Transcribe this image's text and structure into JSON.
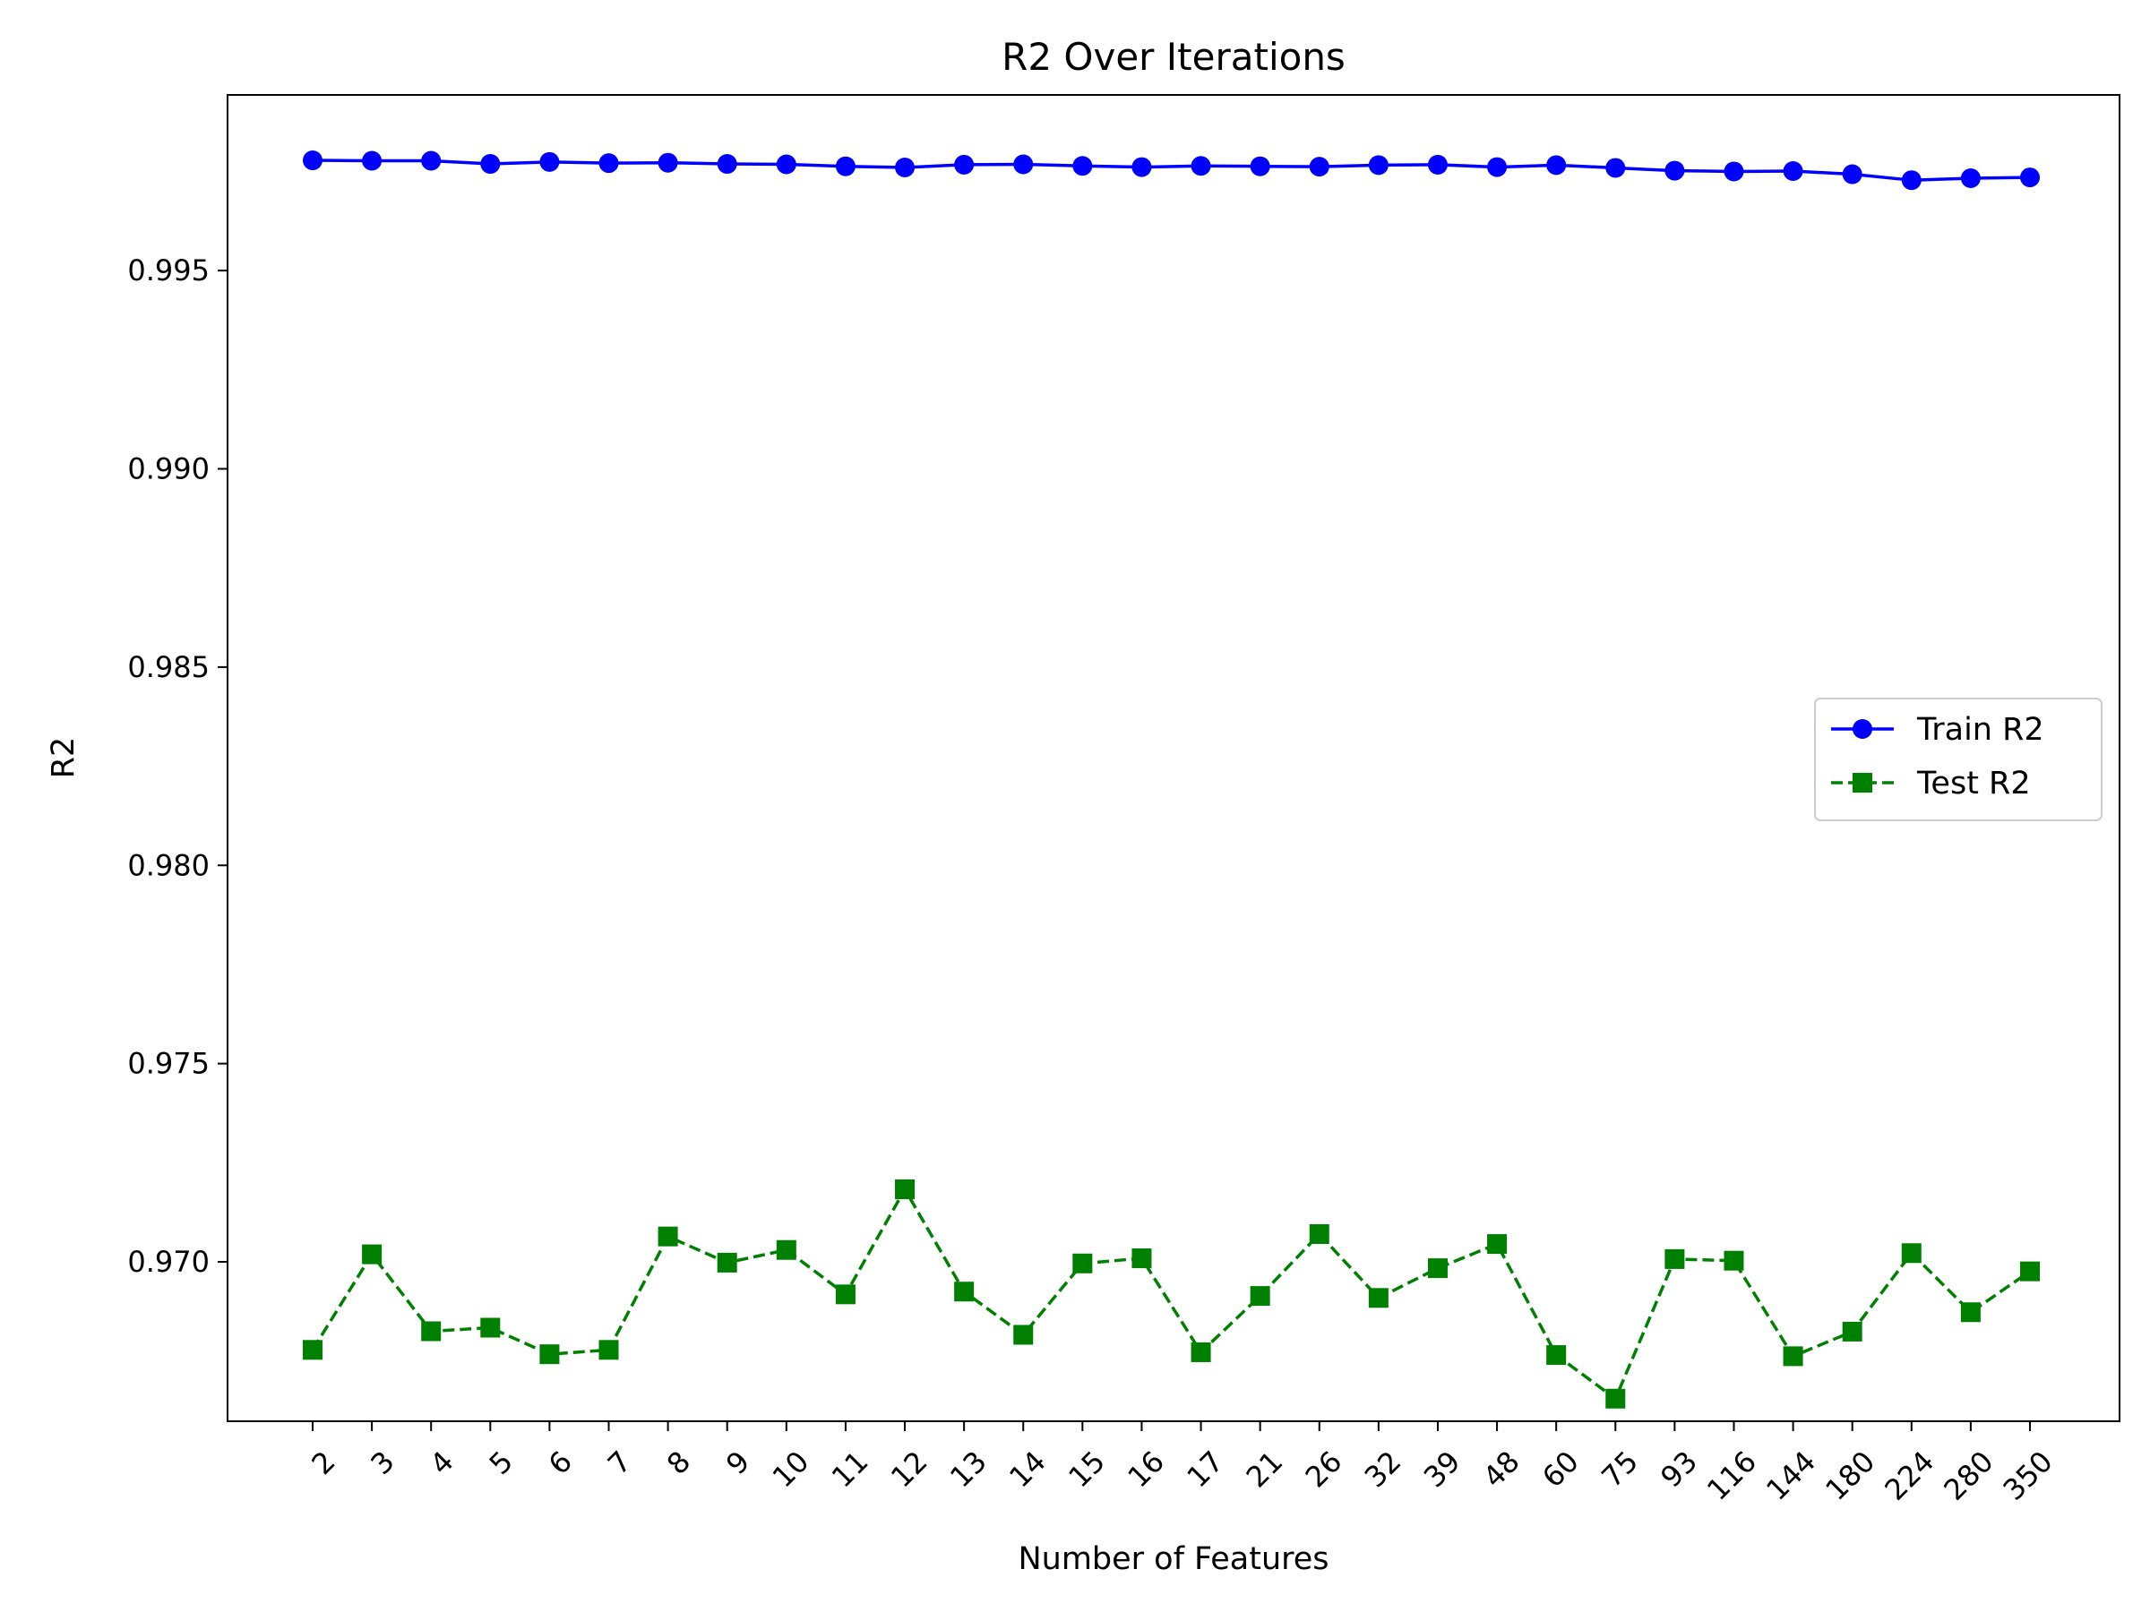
{
  "chart_data": {
    "type": "line",
    "title": "R2 Over Iterations",
    "xlabel": "Number of Features",
    "ylabel": "R2",
    "categories": [
      "2",
      "3",
      "4",
      "5",
      "6",
      "7",
      "8",
      "9",
      "10",
      "11",
      "12",
      "13",
      "14",
      "15",
      "16",
      "17",
      "21",
      "26",
      "32",
      "39",
      "48",
      "60",
      "75",
      "93",
      "116",
      "144",
      "180",
      "224",
      "280",
      "350"
    ],
    "ylim": [
      0.96598,
      0.99943
    ],
    "yticks": [
      "0.970",
      "0.975",
      "0.980",
      "0.985",
      "0.990",
      "0.995"
    ],
    "ytick_values": [
      0.97,
      0.975,
      0.98,
      0.985,
      0.99,
      0.995
    ],
    "grid": false,
    "legend_position": "center-right",
    "series": [
      {
        "name": "Train R2",
        "color": "#0000ff",
        "line_style": "solid",
        "marker": "circle",
        "values": [
          0.99778,
          0.99777,
          0.99777,
          0.99769,
          0.99774,
          0.99771,
          0.99772,
          0.99769,
          0.99768,
          0.99763,
          0.9976,
          0.99767,
          0.99768,
          0.99764,
          0.99761,
          0.99764,
          0.99763,
          0.99762,
          0.99766,
          0.99767,
          0.99761,
          0.99766,
          0.99759,
          0.99752,
          0.9975,
          0.99751,
          0.99743,
          0.99728,
          0.99733,
          0.99735
        ]
      },
      {
        "name": "Test R2",
        "color": "#008000",
        "line_style": "dashed",
        "marker": "square",
        "values": [
          0.96778,
          0.97019,
          0.96825,
          0.96834,
          0.96767,
          0.96778,
          0.97064,
          0.96998,
          0.9703,
          0.96918,
          0.97183,
          0.96925,
          0.96816,
          0.96996,
          0.97009,
          0.96772,
          0.96914,
          0.9707,
          0.96909,
          0.96984,
          0.97045,
          0.96765,
          0.96655,
          0.97007,
          0.97003,
          0.96762,
          0.96824,
          0.97022,
          0.96873,
          0.96976
        ]
      }
    ]
  }
}
